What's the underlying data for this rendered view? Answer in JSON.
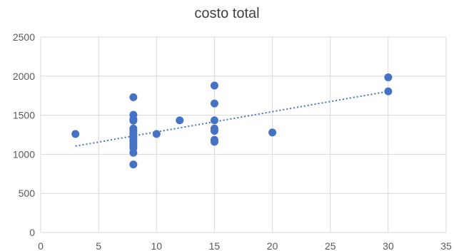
{
  "chart_data": {
    "type": "scatter",
    "title": "costo total",
    "xlabel": "",
    "ylabel": "",
    "xlim": [
      0,
      35
    ],
    "ylim": [
      0,
      2500
    ],
    "xticks": [
      0,
      5,
      10,
      15,
      20,
      25,
      30,
      35
    ],
    "yticks": [
      0,
      500,
      1000,
      1500,
      2000,
      2500
    ],
    "grid": true,
    "marker_color": "#4472c4",
    "trendline": {
      "type": "linear",
      "style": "dotted",
      "color": "#4472c4",
      "from": [
        3,
        1105
      ],
      "to": [
        30,
        1805
      ]
    },
    "points": [
      {
        "x": 3,
        "y": 1260
      },
      {
        "x": 8,
        "y": 1730
      },
      {
        "x": 8,
        "y": 1505
      },
      {
        "x": 8,
        "y": 1450
      },
      {
        "x": 8,
        "y": 1430
      },
      {
        "x": 8,
        "y": 1330
      },
      {
        "x": 8,
        "y": 1295
      },
      {
        "x": 8,
        "y": 1260
      },
      {
        "x": 8,
        "y": 1230
      },
      {
        "x": 8,
        "y": 1200
      },
      {
        "x": 8,
        "y": 1170
      },
      {
        "x": 8,
        "y": 1140
      },
      {
        "x": 8,
        "y": 1110
      },
      {
        "x": 8,
        "y": 1080
      },
      {
        "x": 8,
        "y": 1020
      },
      {
        "x": 8,
        "y": 870
      },
      {
        "x": 10,
        "y": 1260
      },
      {
        "x": 12,
        "y": 1435
      },
      {
        "x": 15,
        "y": 1880
      },
      {
        "x": 15,
        "y": 1650
      },
      {
        "x": 15,
        "y": 1435
      },
      {
        "x": 15,
        "y": 1330
      },
      {
        "x": 15,
        "y": 1300
      },
      {
        "x": 15,
        "y": 1185
      },
      {
        "x": 15,
        "y": 1160
      },
      {
        "x": 20,
        "y": 1280
      },
      {
        "x": 30,
        "y": 1985
      },
      {
        "x": 30,
        "y": 1805
      }
    ]
  }
}
